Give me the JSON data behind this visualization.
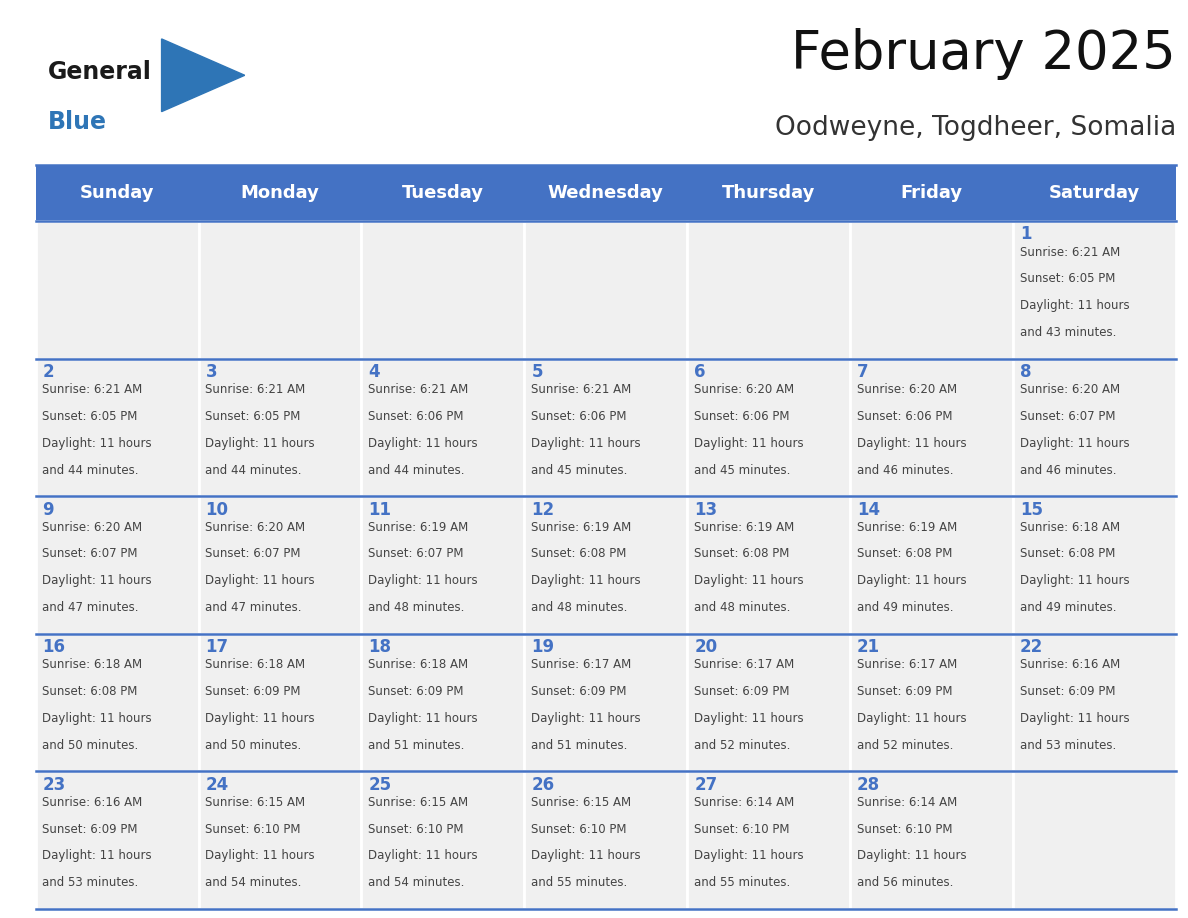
{
  "title": "February 2025",
  "subtitle": "Oodweyne, Togdheer, Somalia",
  "days_of_week": [
    "Sunday",
    "Monday",
    "Tuesday",
    "Wednesday",
    "Thursday",
    "Friday",
    "Saturday"
  ],
  "header_bg": "#4472C4",
  "header_text": "#FFFFFF",
  "cell_bg_light": "#F0F0F0",
  "cell_bg_white": "#FFFFFF",
  "cell_border": "#4472C4",
  "day_number_color": "#4472C4",
  "text_color": "#444444",
  "logo_general_color": "#1a1a1a",
  "logo_blue_color": "#2E75B6",
  "calendar_data": [
    [
      null,
      null,
      null,
      null,
      null,
      null,
      {
        "day": 1,
        "sunrise": "6:21 AM",
        "sunset": "6:05 PM",
        "daylight_hours": 11,
        "daylight_minutes": 43
      }
    ],
    [
      {
        "day": 2,
        "sunrise": "6:21 AM",
        "sunset": "6:05 PM",
        "daylight_hours": 11,
        "daylight_minutes": 44
      },
      {
        "day": 3,
        "sunrise": "6:21 AM",
        "sunset": "6:05 PM",
        "daylight_hours": 11,
        "daylight_minutes": 44
      },
      {
        "day": 4,
        "sunrise": "6:21 AM",
        "sunset": "6:06 PM",
        "daylight_hours": 11,
        "daylight_minutes": 44
      },
      {
        "day": 5,
        "sunrise": "6:21 AM",
        "sunset": "6:06 PM",
        "daylight_hours": 11,
        "daylight_minutes": 45
      },
      {
        "day": 6,
        "sunrise": "6:20 AM",
        "sunset": "6:06 PM",
        "daylight_hours": 11,
        "daylight_minutes": 45
      },
      {
        "day": 7,
        "sunrise": "6:20 AM",
        "sunset": "6:06 PM",
        "daylight_hours": 11,
        "daylight_minutes": 46
      },
      {
        "day": 8,
        "sunrise": "6:20 AM",
        "sunset": "6:07 PM",
        "daylight_hours": 11,
        "daylight_minutes": 46
      }
    ],
    [
      {
        "day": 9,
        "sunrise": "6:20 AM",
        "sunset": "6:07 PM",
        "daylight_hours": 11,
        "daylight_minutes": 47
      },
      {
        "day": 10,
        "sunrise": "6:20 AM",
        "sunset": "6:07 PM",
        "daylight_hours": 11,
        "daylight_minutes": 47
      },
      {
        "day": 11,
        "sunrise": "6:19 AM",
        "sunset": "6:07 PM",
        "daylight_hours": 11,
        "daylight_minutes": 48
      },
      {
        "day": 12,
        "sunrise": "6:19 AM",
        "sunset": "6:08 PM",
        "daylight_hours": 11,
        "daylight_minutes": 48
      },
      {
        "day": 13,
        "sunrise": "6:19 AM",
        "sunset": "6:08 PM",
        "daylight_hours": 11,
        "daylight_minutes": 48
      },
      {
        "day": 14,
        "sunrise": "6:19 AM",
        "sunset": "6:08 PM",
        "daylight_hours": 11,
        "daylight_minutes": 49
      },
      {
        "day": 15,
        "sunrise": "6:18 AM",
        "sunset": "6:08 PM",
        "daylight_hours": 11,
        "daylight_minutes": 49
      }
    ],
    [
      {
        "day": 16,
        "sunrise": "6:18 AM",
        "sunset": "6:08 PM",
        "daylight_hours": 11,
        "daylight_minutes": 50
      },
      {
        "day": 17,
        "sunrise": "6:18 AM",
        "sunset": "6:09 PM",
        "daylight_hours": 11,
        "daylight_minutes": 50
      },
      {
        "day": 18,
        "sunrise": "6:18 AM",
        "sunset": "6:09 PM",
        "daylight_hours": 11,
        "daylight_minutes": 51
      },
      {
        "day": 19,
        "sunrise": "6:17 AM",
        "sunset": "6:09 PM",
        "daylight_hours": 11,
        "daylight_minutes": 51
      },
      {
        "day": 20,
        "sunrise": "6:17 AM",
        "sunset": "6:09 PM",
        "daylight_hours": 11,
        "daylight_minutes": 52
      },
      {
        "day": 21,
        "sunrise": "6:17 AM",
        "sunset": "6:09 PM",
        "daylight_hours": 11,
        "daylight_minutes": 52
      },
      {
        "day": 22,
        "sunrise": "6:16 AM",
        "sunset": "6:09 PM",
        "daylight_hours": 11,
        "daylight_minutes": 53
      }
    ],
    [
      {
        "day": 23,
        "sunrise": "6:16 AM",
        "sunset": "6:09 PM",
        "daylight_hours": 11,
        "daylight_minutes": 53
      },
      {
        "day": 24,
        "sunrise": "6:15 AM",
        "sunset": "6:10 PM",
        "daylight_hours": 11,
        "daylight_minutes": 54
      },
      {
        "day": 25,
        "sunrise": "6:15 AM",
        "sunset": "6:10 PM",
        "daylight_hours": 11,
        "daylight_minutes": 54
      },
      {
        "day": 26,
        "sunrise": "6:15 AM",
        "sunset": "6:10 PM",
        "daylight_hours": 11,
        "daylight_minutes": 55
      },
      {
        "day": 27,
        "sunrise": "6:14 AM",
        "sunset": "6:10 PM",
        "daylight_hours": 11,
        "daylight_minutes": 55
      },
      {
        "day": 28,
        "sunrise": "6:14 AM",
        "sunset": "6:10 PM",
        "daylight_hours": 11,
        "daylight_minutes": 56
      },
      null
    ]
  ]
}
